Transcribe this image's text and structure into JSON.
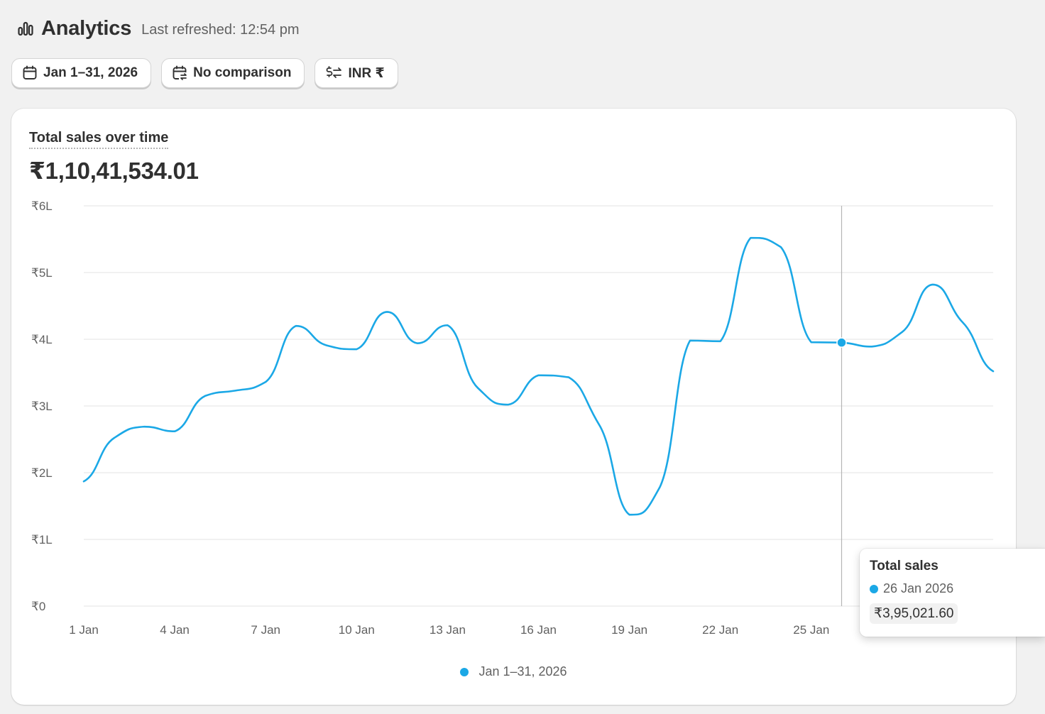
{
  "header": {
    "title": "Analytics",
    "refreshed": "Last refreshed: 12:54 pm",
    "icon": "bar-chart-icon"
  },
  "filters": {
    "date_range": {
      "label": "Jan 1–31, 2026",
      "icon": "calendar-icon"
    },
    "comparison": {
      "label": "No comparison",
      "icon": "calendar-compare-icon"
    },
    "currency": {
      "label": "INR ₹",
      "icon": "currency-exchange-icon"
    }
  },
  "card": {
    "title": "Total sales over time",
    "total": "₹1,10,41,534.01"
  },
  "colors": {
    "series": "#1ba8e6",
    "grid": "#e3e3e3",
    "crosshair": "#b5b5b5"
  },
  "tooltip": {
    "title": "Total sales",
    "date": "26 Jan 2026",
    "value": "₹3,95,021.60"
  },
  "legend": {
    "label": "Jan 1–31, 2026"
  },
  "chart_data": {
    "type": "line",
    "title": "Total sales over time",
    "xlabel": "",
    "ylabel": "",
    "x": [
      1,
      2,
      3,
      4,
      5,
      6,
      7,
      8,
      9,
      10,
      11,
      12,
      13,
      14,
      15,
      16,
      17,
      18,
      19,
      20,
      21,
      22,
      23,
      24,
      25,
      26,
      27,
      28,
      29,
      30,
      31
    ],
    "x_tick_values": [
      1,
      4,
      7,
      10,
      13,
      16,
      19,
      22,
      25
    ],
    "x_tick_labels": [
      "1 Jan",
      "4 Jan",
      "7 Jan",
      "10 Jan",
      "13 Jan",
      "16 Jan",
      "19 Jan",
      "22 Jan",
      "25 Jan"
    ],
    "y_tick_values": [
      0,
      100000,
      200000,
      300000,
      400000,
      500000,
      600000
    ],
    "y_tick_labels": [
      "₹0",
      "₹1L",
      "₹2L",
      "₹3L",
      "₹4L",
      "₹5L",
      "₹6L"
    ],
    "ylim": [
      0,
      600000
    ],
    "grid": true,
    "legend_position": "bottom-center",
    "series": [
      {
        "name": "Jan 1–31, 2026",
        "values": [
          187000,
          252000,
          269000,
          262000,
          315000,
          323000,
          336000,
          420000,
          391000,
          385000,
          441000,
          394000,
          421000,
          327000,
          302000,
          346000,
          343000,
          272000,
          137000,
          178000,
          398000,
          397000,
          552000,
          538000,
          395500,
          395021,
          389000,
          411000,
          482000,
          425000,
          352000
        ]
      }
    ],
    "highlight": {
      "x": 26,
      "value": 395021.6
    }
  }
}
